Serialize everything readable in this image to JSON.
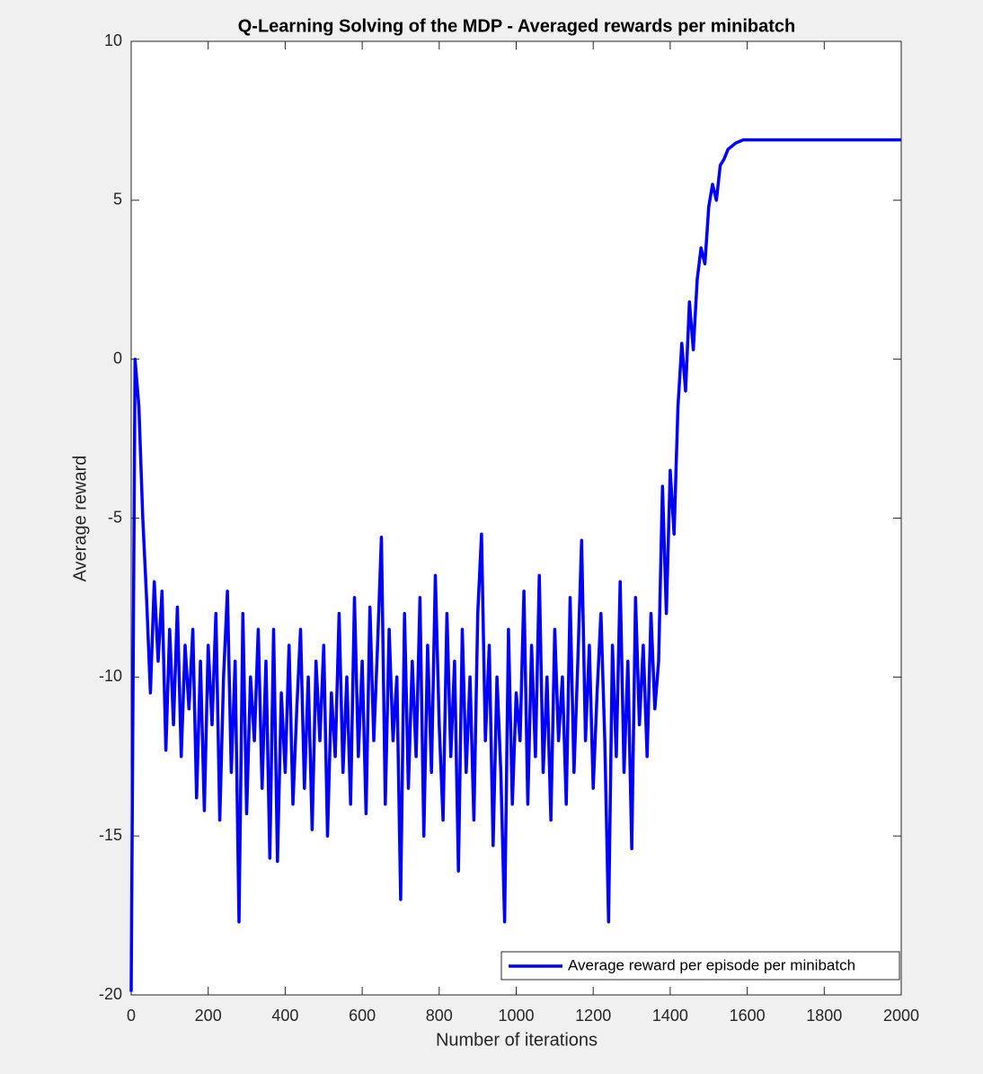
{
  "chart_data": {
    "type": "line",
    "title": "Q-Learning Solving of the MDP - Averaged rewards per minibatch",
    "x_label": "Number of iterations",
    "y_label": "Average reward",
    "xlim": [
      0,
      2000
    ],
    "xticks": [
      0,
      200,
      400,
      600,
      800,
      1000,
      1200,
      1400,
      1600,
      1800,
      2000
    ],
    "ylim": [
      -20,
      10
    ],
    "yticks": [
      -20,
      -15,
      -10,
      -5,
      0,
      5,
      10
    ],
    "legend_position": "lower right",
    "series": [
      {
        "name": "Average reward per episode per minibatch",
        "color": "#0000ff",
        "x": [
          0,
          10,
          20,
          30,
          40,
          50,
          60,
          70,
          80,
          90,
          100,
          110,
          120,
          130,
          140,
          150,
          160,
          170,
          180,
          190,
          200,
          210,
          220,
          230,
          240,
          250,
          260,
          270,
          280,
          290,
          300,
          310,
          320,
          330,
          340,
          350,
          360,
          370,
          380,
          390,
          400,
          410,
          420,
          430,
          440,
          450,
          460,
          470,
          480,
          490,
          500,
          510,
          520,
          530,
          540,
          550,
          560,
          570,
          580,
          590,
          600,
          610,
          620,
          630,
          640,
          650,
          660,
          670,
          680,
          690,
          700,
          710,
          720,
          730,
          740,
          750,
          760,
          770,
          780,
          790,
          800,
          810,
          820,
          830,
          840,
          850,
          860,
          870,
          880,
          890,
          900,
          910,
          920,
          930,
          940,
          950,
          960,
          970,
          980,
          990,
          1000,
          1010,
          1020,
          1030,
          1040,
          1050,
          1060,
          1070,
          1080,
          1090,
          1100,
          1110,
          1120,
          1130,
          1140,
          1150,
          1160,
          1170,
          1180,
          1190,
          1200,
          1210,
          1220,
          1230,
          1240,
          1250,
          1260,
          1270,
          1280,
          1290,
          1300,
          1310,
          1320,
          1330,
          1340,
          1350,
          1360,
          1370,
          1380,
          1390,
          1400,
          1410,
          1420,
          1430,
          1440,
          1450,
          1460,
          1470,
          1480,
          1490,
          1500,
          1510,
          1520,
          1530,
          1540,
          1550,
          1560,
          1570,
          1580,
          1590,
          1600,
          2000
        ],
        "values": [
          -19.9,
          0,
          -1.5,
          -5,
          -7.5,
          -10.5,
          -7,
          -9.5,
          -7.3,
          -12.3,
          -8.5,
          -11.5,
          -7.8,
          -12.5,
          -9,
          -11,
          -8.5,
          -13.8,
          -9.5,
          -14.2,
          -9,
          -11.5,
          -8,
          -14.5,
          -10,
          -7.3,
          -13,
          -9.5,
          -17.7,
          -8,
          -14.3,
          -10,
          -12,
          -8.5,
          -13.5,
          -9.5,
          -15.7,
          -8.5,
          -15.8,
          -10.5,
          -13,
          -9,
          -14,
          -11,
          -8.5,
          -13.5,
          -10,
          -14.8,
          -9.5,
          -12,
          -9,
          -15,
          -10.5,
          -12.5,
          -8,
          -13,
          -10,
          -14,
          -7.5,
          -12.5,
          -9.5,
          -14.3,
          -7.8,
          -12,
          -9,
          -5.6,
          -14,
          -8.5,
          -12,
          -10,
          -17,
          -8,
          -13.5,
          -9.5,
          -12.5,
          -7.5,
          -15,
          -9,
          -13,
          -6.8,
          -11.5,
          -14.5,
          -8,
          -12.5,
          -9.5,
          -16.1,
          -8.5,
          -13,
          -10,
          -14.5,
          -8,
          -5.5,
          -12,
          -9,
          -15.3,
          -10,
          -13,
          -17.7,
          -8.5,
          -14,
          -10.5,
          -12,
          -7.3,
          -14,
          -9,
          -12.5,
          -6.8,
          -13,
          -10,
          -14.5,
          -8.5,
          -12,
          -10,
          -14,
          -7.5,
          -13,
          -9.5,
          -5.7,
          -12,
          -9,
          -13.5,
          -10.5,
          -8,
          -12,
          -17.7,
          -9,
          -12.5,
          -7,
          -13,
          -9.5,
          -15.4,
          -7.5,
          -11.5,
          -9,
          -12.5,
          -8,
          -11,
          -9.5,
          -4,
          -8,
          -3.5,
          -5.5,
          -1.5,
          0.5,
          -1,
          1.8,
          0.3,
          2.5,
          3.5,
          3,
          4.8,
          5.5,
          5,
          6.1,
          6.3,
          6.6,
          6.7,
          6.8,
          6.85,
          6.9,
          6.9,
          6.9
        ]
      }
    ]
  }
}
